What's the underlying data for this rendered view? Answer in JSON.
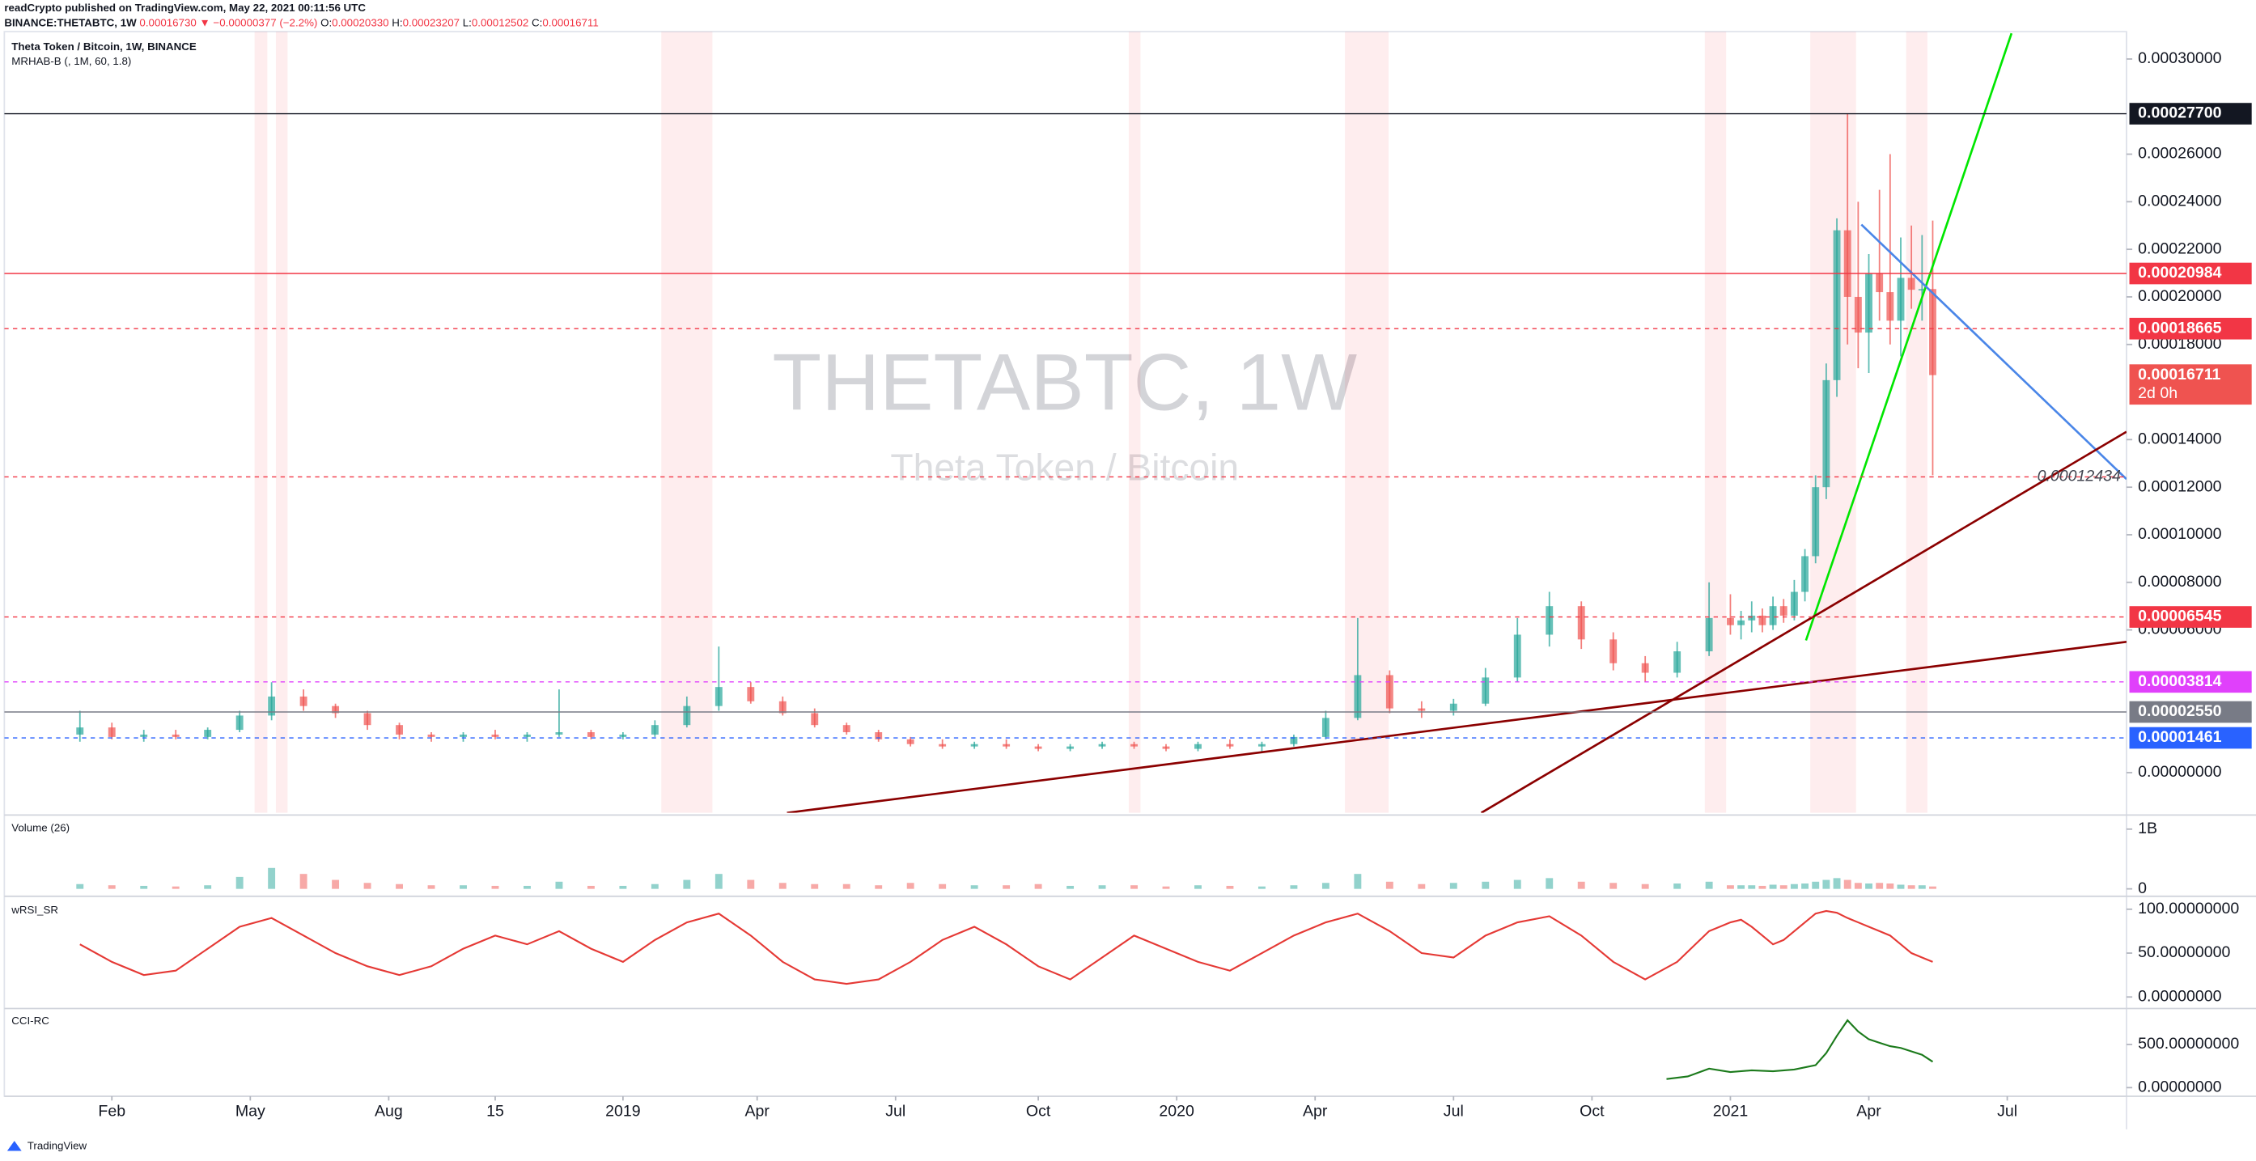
{
  "header": {
    "line1": "readCrypto published on TradingView.com, May 22, 2021 00:11:56 UTC",
    "symbol": "BINANCE:THETABTC, 1W",
    "last": "0.00016730",
    "change": "▼ −0.00000377 (−2.2%)",
    "o_label": "O:",
    "o": "0.00020330",
    "h_label": "H:",
    "h": "0.00023207",
    "l_label": "L:",
    "l": "0.00012502",
    "c_label": "C:",
    "c": "0.00016711"
  },
  "chart_data": [
    {
      "type": "candlestick",
      "title": "Theta Token / Bitcoin, 1W, BINANCE",
      "indicator": "MRHAB-B (, 1M, 60, 1.8)",
      "watermark": "THETABTC, 1W",
      "watermark_subtitle": "Theta Token / Bitcoin",
      "up_color": "#26a69a",
      "down_color": "#ef5350",
      "x": [
        -3,
        0,
        3,
        6,
        9,
        12,
        15,
        18,
        21,
        24,
        27,
        30,
        33,
        36,
        39,
        42,
        45,
        48,
        51,
        54,
        57,
        60,
        63,
        66,
        69,
        72,
        75,
        78,
        81,
        84,
        87,
        90,
        93,
        96,
        99,
        102,
        105,
        108,
        111,
        114,
        117,
        120,
        123,
        126,
        129,
        132,
        135,
        138,
        141,
        144,
        147,
        150,
        152,
        153,
        154,
        155,
        156,
        157,
        158,
        159,
        160,
        161,
        162,
        163,
        164,
        165,
        166,
        167,
        168,
        169,
        170,
        171
      ],
      "open": [
        1.6e-05,
        1.9e-05,
        1.5e-05,
        1.6e-05,
        1.5e-05,
        1.8e-05,
        2.4e-05,
        3.2e-05,
        2.8e-05,
        2.5e-05,
        2e-05,
        1.6e-05,
        1.5e-05,
        1.6e-05,
        1.5e-05,
        1.6e-05,
        1.7e-05,
        1.5e-05,
        1.6e-05,
        2e-05,
        2.8e-05,
        3.6e-05,
        3e-05,
        2.5e-05,
        2e-05,
        1.7e-05,
        1.4e-05,
        1.2e-05,
        1.1e-05,
        1.2e-05,
        1.1e-05,
        1e-05,
        1.1e-05,
        1.2e-05,
        1.1e-05,
        1e-05,
        1.2e-05,
        1.1e-05,
        1.2e-05,
        1.5e-05,
        2.3e-05,
        4.1e-05,
        2.7e-05,
        2.6e-05,
        2.9e-05,
        4e-05,
        5.8e-05,
        7e-05,
        5.6e-05,
        4.6e-05,
        4.2e-05,
        5.1e-05,
        6.5e-05,
        6.2e-05,
        6.4e-05,
        6.6e-05,
        6.2e-05,
        7e-05,
        6.6e-05,
        7.6e-05,
        9.1e-05,
        0.00012,
        0.000165,
        0.000228,
        0.0002,
        0.000185,
        0.00021,
        0.000202,
        0.00019,
        0.000208,
        0.000203,
        0.0002033
      ],
      "high": [
        2.6e-05,
        2.1e-05,
        1.8e-05,
        1.8e-05,
        1.9e-05,
        2.6e-05,
        3.8e-05,
        3.5e-05,
        2.9e-05,
        2.6e-05,
        2.1e-05,
        1.7e-05,
        1.7e-05,
        1.8e-05,
        1.7e-05,
        3.5e-05,
        1.8e-05,
        1.7e-05,
        2.2e-05,
        3.2e-05,
        5.3e-05,
        3.8e-05,
        3.2e-05,
        2.7e-05,
        2.1e-05,
        1.8e-05,
        1.5e-05,
        1.4e-05,
        1.3e-05,
        1.4e-05,
        1.2e-05,
        1.2e-05,
        1.3e-05,
        1.3e-05,
        1.2e-05,
        1.3e-05,
        1.4e-05,
        1.3e-05,
        1.6e-05,
        2.6e-05,
        6.5e-05,
        4.3e-05,
        3e-05,
        3.1e-05,
        4.4e-05,
        6.5e-05,
        7.6e-05,
        7.2e-05,
        5.9e-05,
        4.9e-05,
        5.5e-05,
        8e-05,
        7.5e-05,
        6.8e-05,
        7.2e-05,
        6.9e-05,
        7.4e-05,
        7.3e-05,
        8.1e-05,
        9.4e-05,
        0.000125,
        0.000172,
        0.000233,
        0.000277,
        0.00024,
        0.000218,
        0.000245,
        0.00026,
        0.000225,
        0.00023,
        0.000226,
        0.00023207
      ],
      "low": [
        1.3e-05,
        1.4e-05,
        1.3e-05,
        1.4e-05,
        1.4e-05,
        1.7e-05,
        2.2e-05,
        2.6e-05,
        2.3e-05,
        1.8e-05,
        1.4e-05,
        1.3e-05,
        1.3e-05,
        1.4e-05,
        1.3e-05,
        1.5e-05,
        1.4e-05,
        1.4e-05,
        1.5e-05,
        1.9e-05,
        2.6e-05,
        2.9e-05,
        2.4e-05,
        1.9e-05,
        1.6e-05,
        1.3e-05,
        1.1e-05,
        1e-05,
        1e-05,
        1e-05,
        9e-06,
        9e-06,
        1e-05,
        1e-05,
        9e-06,
        9e-06,
        1e-05,
        9e-06,
        1.1e-05,
        1.4e-05,
        2.2e-05,
        2.5e-05,
        2.3e-05,
        2.4e-05,
        2.8e-05,
        3.8e-05,
        5.3e-05,
        5.2e-05,
        4.3e-05,
        3.8e-05,
        4e-05,
        4.9e-05,
        5.8e-05,
        5.6e-05,
        5.9e-05,
        5.9e-05,
        6e-05,
        6.3e-05,
        6.4e-05,
        7.2e-05,
        8.8e-05,
        0.000115,
        0.000158,
        0.00018,
        0.00017,
        0.000168,
        0.00019,
        0.00018,
        0.000175,
        0.000195,
        0.00019,
        0.00012502
      ],
      "close": [
        1.9e-05,
        1.5e-05,
        1.6e-05,
        1.5e-05,
        1.8e-05,
        2.4e-05,
        3.2e-05,
        2.8e-05,
        2.5e-05,
        2e-05,
        1.6e-05,
        1.5e-05,
        1.6e-05,
        1.5e-05,
        1.6e-05,
        1.7e-05,
        1.5e-05,
        1.6e-05,
        2e-05,
        2.8e-05,
        3.6e-05,
        3e-05,
        2.5e-05,
        2e-05,
        1.7e-05,
        1.4e-05,
        1.2e-05,
        1.1e-05,
        1.2e-05,
        1.1e-05,
        1e-05,
        1.1e-05,
        1.2e-05,
        1.1e-05,
        1e-05,
        1.2e-05,
        1.1e-05,
        1.2e-05,
        1.5e-05,
        2.3e-05,
        4.1e-05,
        2.7e-05,
        2.6e-05,
        2.9e-05,
        4e-05,
        5.8e-05,
        7e-05,
        5.6e-05,
        4.6e-05,
        4.2e-05,
        5.1e-05,
        6.5e-05,
        6.2e-05,
        6.4e-05,
        6.6e-05,
        6.2e-05,
        7e-05,
        6.6e-05,
        7.6e-05,
        9.1e-05,
        0.00012,
        0.000165,
        0.000228,
        0.0002,
        0.000185,
        0.00021,
        0.000202,
        0.00019,
        0.000208,
        0.000203,
        0.0002033,
        0.00016711
      ],
      "xlim": [
        -10.1,
        189.2
      ],
      "xticks": [
        {
          "value": 0,
          "label": "Feb"
        },
        {
          "value": 13,
          "label": "May"
        },
        {
          "value": 26,
          "label": "Aug"
        },
        {
          "value": 36,
          "label": "15"
        },
        {
          "value": 48,
          "label": "2019"
        },
        {
          "value": 60.6,
          "label": "Apr"
        },
        {
          "value": 73.6,
          "label": "Jul"
        },
        {
          "value": 87,
          "label": "Oct"
        },
        {
          "value": 100,
          "label": "2020"
        },
        {
          "value": 113,
          "label": "Apr"
        },
        {
          "value": 126,
          "label": "Jul"
        },
        {
          "value": 139,
          "label": "Oct"
        },
        {
          "value": 152,
          "label": "2021"
        },
        {
          "value": 165,
          "label": "Apr"
        },
        {
          "value": 178,
          "label": "Jul"
        }
      ],
      "ylim": [
        -1.69e-05,
        0.0003115
      ],
      "yticks": [
        {
          "value": 0.0003,
          "label": "0.00030000"
        },
        {
          "value": 0.00026,
          "label": "0.00026000"
        },
        {
          "value": 0.00024,
          "label": "0.00024000"
        },
        {
          "value": 0.00022,
          "label": "0.00022000"
        },
        {
          "value": 0.0002,
          "label": "0.00020000"
        },
        {
          "value": 0.00018,
          "label": "0.00018000"
        },
        {
          "value": 0.00014,
          "label": "0.00014000"
        },
        {
          "value": 0.00012,
          "label": "0.00012000"
        },
        {
          "value": 0.0001,
          "label": "0.00010000"
        },
        {
          "value": 8e-05,
          "label": "0.00008000"
        },
        {
          "value": 6e-05,
          "label": "0.00006000"
        },
        {
          "value": 0,
          "label": "0.00000000"
        }
      ],
      "levels": [
        {
          "value": 0.000277,
          "label": "0.00027700",
          "color": "#131722",
          "line": "solid"
        },
        {
          "value": 0.00020984,
          "label": "0.00020984",
          "color": "#f23645",
          "line": "solid"
        },
        {
          "value": 0.00018665,
          "label": "0.00018665",
          "color": "#f23645",
          "line": "dashed"
        },
        {
          "value": 0.00016711,
          "label": "0.00016711",
          "sublabel": "2d 0h",
          "color": "#ef5350",
          "line": "none"
        },
        {
          "value": 0.00012434,
          "label": "0.00012434",
          "color": "#f23645",
          "line": "dashed",
          "label_position": "inline"
        },
        {
          "value": 6.545e-05,
          "label": "0.00006545",
          "color": "#f23645",
          "line": "dashed"
        },
        {
          "value": 3.814e-05,
          "label": "0.00003814",
          "color": "#e040fb",
          "line": "dashed"
        },
        {
          "value": 2.55e-05,
          "label": "0.00002550",
          "color": "#787b86",
          "line": "solid"
        },
        {
          "value": 1.461e-05,
          "label": "0.00001461",
          "color": "#2962ff",
          "line": "dashed"
        }
      ],
      "trendlines": [
        {
          "color": "#00e600",
          "x": [
            159.1,
            178.4
          ],
          "y": [
            5.56e-05,
            0.0003108
          ]
        },
        {
          "color": "#4a86e8",
          "x": [
            164.3,
            189.2
          ],
          "y": [
            0.0002304,
            0.0001234
          ]
        },
        {
          "color": "#8b0000",
          "x": [
            128.6,
            189.2
          ],
          "y": [
            -1.69e-05,
            0.0001433
          ]
        },
        {
          "color": "#8b0000",
          "x": [
            63.4,
            189.2
          ],
          "y": [
            -1.69e-05,
            5.5e-05
          ]
        }
      ],
      "bands": [
        [
          13.4,
          14.6
        ],
        [
          15.4,
          16.5
        ],
        [
          51.6,
          56.4
        ],
        [
          95.5,
          96.6
        ],
        [
          115.8,
          119.9
        ],
        [
          149.6,
          151.6
        ],
        [
          159.5,
          163.8
        ],
        [
          168.5,
          170.5
        ]
      ]
    },
    {
      "type": "bar",
      "title": "Volume (26)",
      "values": [
        80000000,
        60000000,
        50000000,
        40000000,
        60000000,
        200000000,
        350000000,
        250000000,
        150000000,
        100000000,
        80000000,
        60000000,
        60000000,
        50000000,
        50000000,
        120000000,
        50000000,
        50000000,
        80000000,
        150000000,
        250000000,
        150000000,
        100000000,
        80000000,
        80000000,
        60000000,
        100000000,
        80000000,
        60000000,
        60000000,
        80000000,
        50000000,
        60000000,
        60000000,
        40000000,
        60000000,
        50000000,
        40000000,
        60000000,
        100000000,
        250000000,
        120000000,
        80000000,
        100000000,
        120000000,
        150000000,
        180000000,
        120000000,
        100000000,
        80000000,
        90000000,
        120000000,
        60000000,
        60000000,
        60000000,
        50000000,
        70000000,
        60000000,
        80000000,
        90000000,
        120000000,
        150000000,
        180000000,
        150000000,
        100000000,
        90000000,
        100000000,
        90000000,
        70000000,
        60000000,
        60000000,
        40000000
      ],
      "ylim": [
        -100000000,
        1200000000
      ],
      "yticks": [
        {
          "value": 1000000000,
          "label": "1B"
        },
        0
      ]
    },
    {
      "type": "line",
      "title": "wRSI_SR",
      "color": "#e53935",
      "values": [
        60,
        40,
        25,
        30,
        55,
        80,
        90,
        70,
        50,
        35,
        25,
        35,
        55,
        70,
        60,
        75,
        55,
        40,
        65,
        85,
        95,
        70,
        40,
        20,
        15,
        20,
        40,
        65,
        80,
        60,
        35,
        20,
        45,
        70,
        55,
        40,
        30,
        50,
        70,
        85,
        95,
        75,
        50,
        45,
        70,
        85,
        92,
        70,
        40,
        20,
        40,
        75,
        85,
        88,
        80,
        70,
        60,
        65,
        75,
        85,
        95,
        98,
        96,
        90,
        85,
        80,
        75,
        70,
        60,
        50,
        45,
        40
      ],
      "ylim": [
        -11.5,
        113.1
      ],
      "yticks": [
        {
          "value": 100,
          "label": "100.00000000"
        },
        {
          "value": 50,
          "label": "50.00000000"
        },
        {
          "value": 0,
          "label": "0.00000000"
        }
      ]
    },
    {
      "type": "line",
      "title": "CCI-RC",
      "color": "#1b7a1b",
      "x": [
        146,
        148,
        150,
        152,
        154,
        156,
        158,
        160,
        161,
        162,
        163,
        164,
        165,
        166,
        167,
        168,
        169,
        170,
        171
      ],
      "values": [
        100,
        130,
        220,
        180,
        200,
        190,
        210,
        260,
        400,
        600,
        780,
        650,
        560,
        520,
        480,
        460,
        420,
        380,
        300
      ],
      "ylim": [
        -100,
        900
      ],
      "yticks": [
        {
          "value": 500,
          "label": "500.00000000"
        },
        {
          "value": 0,
          "label": "0.00000000"
        }
      ]
    }
  ],
  "footer": {
    "brand": "TradingView"
  }
}
